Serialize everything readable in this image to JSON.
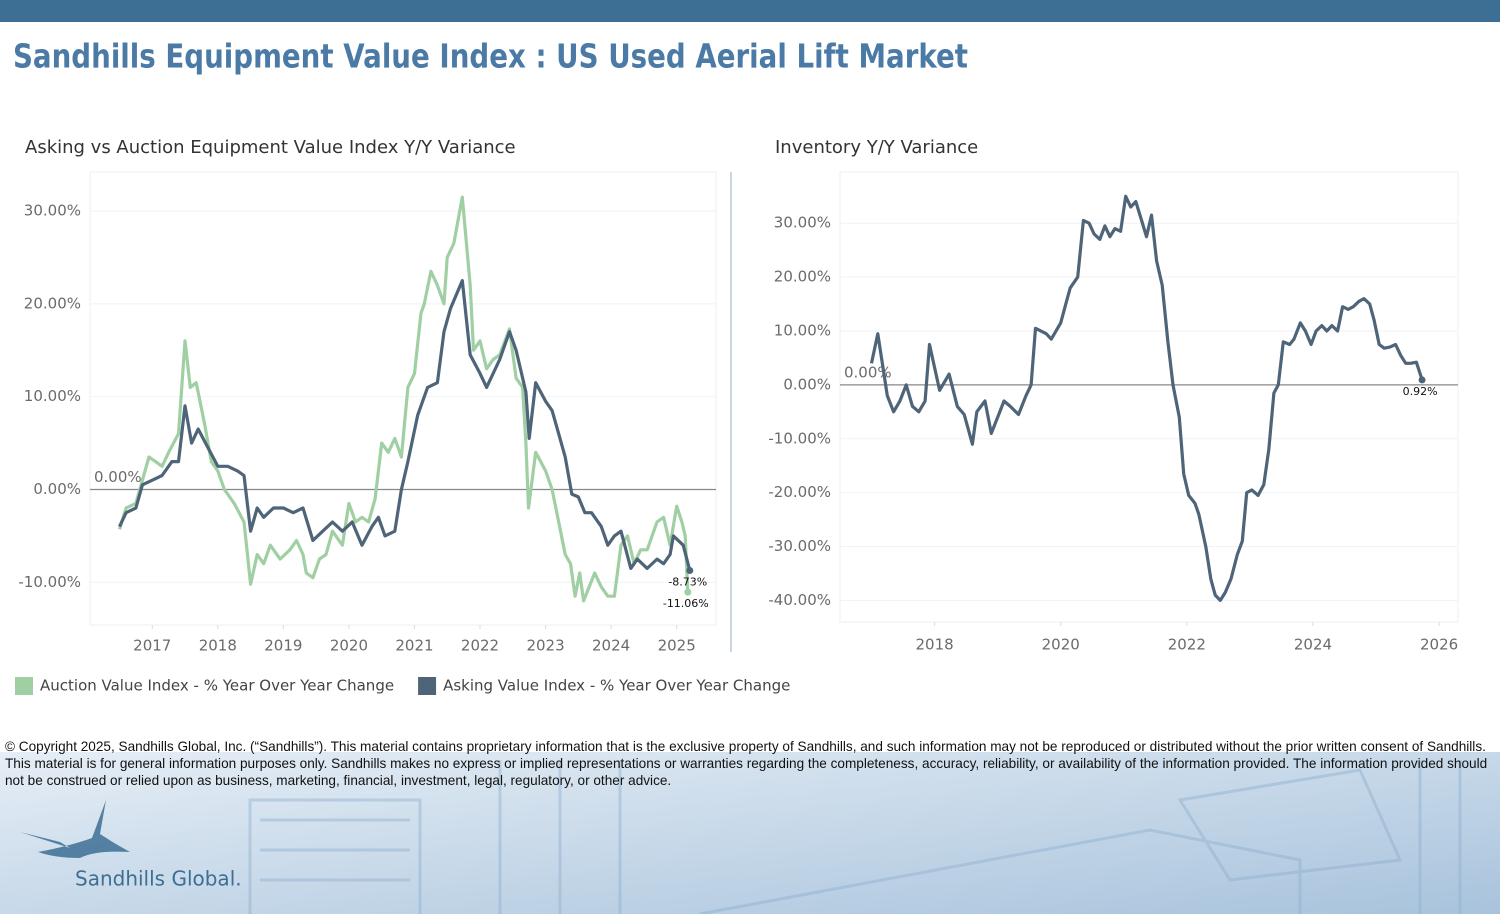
{
  "header": {
    "title": "Sandhills Equipment Value Index : US Used Aerial Lift Market"
  },
  "footer": {
    "copyright": "© Copyright 2025, Sandhills Global, Inc. (“Sandhills”). This material contains proprietary information that is the exclusive property of Sandhills, and such information may not be reproduced or distributed without the prior written consent of Sandhills. This material is for general information purposes only. Sandhills makes no express or implied representations or warranties regarding the completeness, accuracy, reliability, or availability of the information provided. The information provided should not be construed or relied upon as business, marketing, financial, investment, legal, regulatory, or other advice.",
    "logo_text": "Sandhills Global."
  },
  "chart_data": [
    {
      "type": "line",
      "title": "Asking vs Auction Equipment Value Index Y/Y Variance",
      "xlim": [
        2016.05,
        2025.6
      ],
      "xticks": [
        2017,
        2018,
        2019,
        2020,
        2021,
        2022,
        2023,
        2024,
        2025
      ],
      "ylim": [
        -14.6,
        34.2
      ],
      "yticks": [
        {
          "value": -10,
          "label": "-10.00%"
        },
        {
          "value": 0,
          "label": "0.00%"
        },
        {
          "value": 10,
          "label": "10.00%"
        },
        {
          "value": 20,
          "label": "20.00%"
        },
        {
          "value": 30,
          "label": "30.00%"
        }
      ],
      "grid": true,
      "legend": "bottom-left",
      "reference_line": {
        "value": 0,
        "label": "0.00%"
      },
      "series": [
        {
          "name": "Auction Value Index - % Year Over Year Change",
          "color": "#9fcfa3",
          "x": [
            2016.5,
            2016.6,
            2016.75,
            2016.85,
            2016.95,
            2017.05,
            2017.15,
            2017.25,
            2017.4,
            2017.5,
            2017.58,
            2017.67,
            2017.8,
            2017.9,
            2018.0,
            2018.1,
            2018.25,
            2018.4,
            2018.5,
            2018.6,
            2018.7,
            2018.8,
            2018.95,
            2019.1,
            2019.2,
            2019.3,
            2019.35,
            2019.45,
            2019.55,
            2019.65,
            2019.75,
            2019.9,
            2020.0,
            2020.1,
            2020.2,
            2020.3,
            2020.4,
            2020.5,
            2020.6,
            2020.7,
            2020.8,
            2020.9,
            2021.0,
            2021.1,
            2021.15,
            2021.25,
            2021.35,
            2021.45,
            2021.5,
            2021.6,
            2021.73,
            2021.85,
            2021.9,
            2022.0,
            2022.1,
            2022.2,
            2022.3,
            2022.45,
            2022.55,
            2022.65,
            2022.7,
            2022.74,
            2022.85,
            2023.0,
            2023.1,
            2023.2,
            2023.3,
            2023.38,
            2023.45,
            2023.52,
            2023.58,
            2023.75,
            2023.85,
            2023.95,
            2024.05,
            2024.15,
            2024.25,
            2024.35,
            2024.45,
            2024.55,
            2024.7,
            2024.8,
            2024.9,
            2025.0,
            2025.08,
            2025.13,
            2025.17
          ],
          "values": [
            -4.3,
            -2,
            -1.5,
            1,
            3.5,
            3,
            2.5,
            4,
            6,
            16,
            11,
            11.5,
            7,
            3,
            2,
            0,
            -1.5,
            -3.5,
            -10.2,
            -7,
            -8,
            -6,
            -7.5,
            -6.5,
            -5.5,
            -7,
            -9,
            -9.5,
            -7.5,
            -7,
            -4.5,
            -6,
            -1.5,
            -3.5,
            -3,
            -3.5,
            -1,
            5,
            4,
            5.5,
            3.5,
            11,
            12.5,
            19,
            20,
            23.5,
            22,
            20,
            25,
            26.5,
            31.5,
            22,
            15,
            16,
            13,
            14,
            14.5,
            17.3,
            12,
            11,
            5,
            -2,
            4,
            2,
            0,
            -3.5,
            -7,
            -8,
            -11.5,
            -9,
            -12,
            -9,
            -10.5,
            -11.5,
            -11.5,
            -6,
            -5,
            -8,
            -6.5,
            -6.5,
            -3.5,
            -3,
            -6,
            -1.8,
            -3.5,
            -5,
            -11.06
          ],
          "value_labels": [
            null,
            null,
            null,
            null,
            null,
            null,
            null,
            null,
            null,
            null,
            null,
            null,
            null,
            null,
            null,
            null,
            null,
            null,
            null,
            null,
            null,
            null,
            null,
            null,
            null,
            null,
            null,
            null,
            null,
            null,
            null,
            null,
            null,
            null,
            null,
            null,
            null,
            null,
            null,
            null,
            null,
            null,
            null,
            null,
            null,
            null,
            null,
            null,
            null,
            null,
            null,
            null,
            null,
            null,
            null,
            null,
            null,
            null,
            null,
            null,
            null,
            null,
            null,
            null,
            null,
            null,
            null,
            null,
            null,
            null,
            null,
            null,
            null,
            null,
            null,
            null,
            null,
            null,
            null,
            null,
            null,
            null,
            null,
            null,
            null,
            null,
            "-11.06%"
          ]
        },
        {
          "name": "Asking Value Index - % Year Over Year Change",
          "color": "#4e6478",
          "x": [
            2016.5,
            2016.6,
            2016.75,
            2016.85,
            2017.0,
            2017.15,
            2017.3,
            2017.4,
            2017.5,
            2017.6,
            2017.7,
            2017.85,
            2018.0,
            2018.15,
            2018.3,
            2018.4,
            2018.5,
            2018.6,
            2018.7,
            2018.85,
            2019.0,
            2019.15,
            2019.3,
            2019.45,
            2019.6,
            2019.75,
            2019.9,
            2020.05,
            2020.2,
            2020.35,
            2020.45,
            2020.55,
            2020.7,
            2020.8,
            2020.9,
            2021.05,
            2021.2,
            2021.35,
            2021.45,
            2021.55,
            2021.73,
            2021.85,
            2022.0,
            2022.1,
            2022.3,
            2022.45,
            2022.55,
            2022.7,
            2022.75,
            2022.85,
            2023.0,
            2023.1,
            2023.2,
            2023.3,
            2023.4,
            2023.5,
            2023.6,
            2023.7,
            2023.85,
            2023.95,
            2024.05,
            2024.15,
            2024.3,
            2024.4,
            2024.55,
            2024.7,
            2024.8,
            2024.9,
            2024.95,
            2025.1,
            2025.2
          ],
          "values": [
            -4,
            -2.5,
            -2,
            0.5,
            1,
            1.5,
            3,
            3,
            9,
            5,
            6.5,
            4.5,
            2.5,
            2.5,
            2,
            1.5,
            -4.5,
            -2,
            -3,
            -2,
            -2,
            -2.5,
            -2,
            -5.5,
            -4.5,
            -3.5,
            -4.5,
            -3.5,
            -6,
            -4,
            -3,
            -5,
            -4.5,
            0,
            3,
            8,
            11,
            11.5,
            17,
            19.5,
            22.5,
            14.5,
            12.5,
            11,
            14,
            17,
            15,
            10.5,
            5.5,
            11.5,
            9.5,
            8.5,
            6,
            3.5,
            -0.5,
            -0.8,
            -2.5,
            -2.5,
            -4,
            -6,
            -5,
            -4.5,
            -8.5,
            -7.5,
            -8.5,
            -7.5,
            -8,
            -7,
            -5,
            -6,
            -8.73
          ],
          "value_labels": [
            null,
            null,
            null,
            null,
            null,
            null,
            null,
            null,
            null,
            null,
            null,
            null,
            null,
            null,
            null,
            null,
            null,
            null,
            null,
            null,
            null,
            null,
            null,
            null,
            null,
            null,
            null,
            null,
            null,
            null,
            null,
            null,
            null,
            null,
            null,
            null,
            null,
            null,
            null,
            null,
            null,
            null,
            null,
            null,
            null,
            null,
            null,
            null,
            null,
            null,
            null,
            null,
            null,
            null,
            null,
            null,
            null,
            null,
            null,
            null,
            null,
            null,
            null,
            null,
            null,
            null,
            null,
            null,
            null,
            null,
            "-8.73%"
          ]
        }
      ]
    },
    {
      "type": "line",
      "title": "Inventory Y/Y Variance",
      "xlim": [
        2016.5,
        2026.3
      ],
      "xticks": [
        2018,
        2020,
        2022,
        2024,
        2026
      ],
      "ylim": [
        -44,
        39.5
      ],
      "yticks": [
        {
          "value": -40,
          "label": "-40.00%"
        },
        {
          "value": -30,
          "label": "-30.00%"
        },
        {
          "value": -20,
          "label": "-20.00%"
        },
        {
          "value": -10,
          "label": "-10.00%"
        },
        {
          "value": 0,
          "label": "0.00%"
        },
        {
          "value": 10,
          "label": "10.00%"
        },
        {
          "value": 20,
          "label": "20.00%"
        },
        {
          "value": 30,
          "label": "30.00%"
        }
      ],
      "grid": true,
      "reference_line": {
        "value": 0,
        "label": "0.00%"
      },
      "color": "#4e6478",
      "x": [
        2017.0,
        2017.1,
        2017.25,
        2017.35,
        2017.45,
        2017.55,
        2017.65,
        2017.75,
        2017.85,
        2017.92,
        2018.08,
        2018.23,
        2018.36,
        2018.47,
        2018.6,
        2018.67,
        2018.8,
        2018.9,
        2019.0,
        2019.1,
        2019.2,
        2019.33,
        2019.45,
        2019.53,
        2019.6,
        2019.77,
        2019.85,
        2020.0,
        2020.08,
        2020.15,
        2020.27,
        2020.36,
        2020.45,
        2020.53,
        2020.62,
        2020.7,
        2020.78,
        2020.86,
        2020.95,
        2021.03,
        2021.11,
        2021.19,
        2021.27,
        2021.36,
        2021.44,
        2021.52,
        2021.61,
        2021.7,
        2021.78,
        2021.88,
        2021.95,
        2022.03,
        2022.13,
        2022.19,
        2022.3,
        2022.38,
        2022.45,
        2022.53,
        2022.61,
        2022.7,
        2022.8,
        2022.88,
        2022.95,
        2023.03,
        2023.13,
        2023.22,
        2023.3,
        2023.38,
        2023.45,
        2023.53,
        2023.63,
        2023.7,
        2023.8,
        2023.88,
        2023.97,
        2024.05,
        2024.14,
        2024.22,
        2024.3,
        2024.39,
        2024.47,
        2024.56,
        2024.64,
        2024.73,
        2024.81,
        2024.9,
        2024.97,
        2025.05,
        2025.13,
        2025.22,
        2025.31,
        2025.39,
        2025.47,
        2025.55,
        2025.64,
        2025.73
      ],
      "values": [
        4,
        9.5,
        -2,
        -5,
        -3,
        0,
        -4,
        -5,
        -3,
        7.5,
        -1,
        2,
        -4,
        -5.5,
        -11,
        -5,
        -3,
        -9,
        -6,
        -3,
        -4,
        -5.5,
        -2,
        0,
        10.5,
        9.5,
        8.5,
        11.5,
        15,
        18,
        20,
        30.5,
        30,
        28,
        27,
        29.5,
        27.5,
        29,
        28.5,
        35,
        33,
        34,
        31,
        27.5,
        31.5,
        23,
        18.5,
        8,
        0,
        -6,
        -16.5,
        -20.5,
        -22,
        -24,
        -30,
        -36,
        -39,
        -40,
        -38.5,
        -36,
        -31.5,
        -29,
        -20,
        -19.5,
        -20.5,
        -18.5,
        -12,
        -1.5,
        0,
        8,
        7.5,
        8.5,
        11.5,
        10,
        7.5,
        10,
        11,
        10,
        11,
        10,
        14.5,
        14,
        14.5,
        15.5,
        16,
        15,
        12,
        7.5,
        6.8,
        7,
        7.5,
        5.5,
        4,
        4,
        4.2,
        0.92
      ],
      "value_labels": [
        null,
        null,
        null,
        null,
        null,
        null,
        null,
        null,
        null,
        null,
        null,
        null,
        null,
        null,
        null,
        null,
        null,
        null,
        null,
        null,
        null,
        null,
        null,
        null,
        null,
        null,
        null,
        null,
        null,
        null,
        null,
        null,
        null,
        null,
        null,
        null,
        null,
        null,
        null,
        null,
        null,
        null,
        null,
        null,
        null,
        null,
        null,
        null,
        null,
        null,
        null,
        null,
        null,
        null,
        null,
        null,
        null,
        null,
        null,
        null,
        null,
        null,
        null,
        null,
        null,
        null,
        null,
        null,
        null,
        null,
        null,
        null,
        null,
        null,
        null,
        null,
        null,
        null,
        null,
        null,
        null,
        null,
        null,
        null,
        null,
        null,
        null,
        null,
        null,
        null,
        null,
        null,
        null,
        null,
        null,
        "0.92%"
      ]
    }
  ]
}
